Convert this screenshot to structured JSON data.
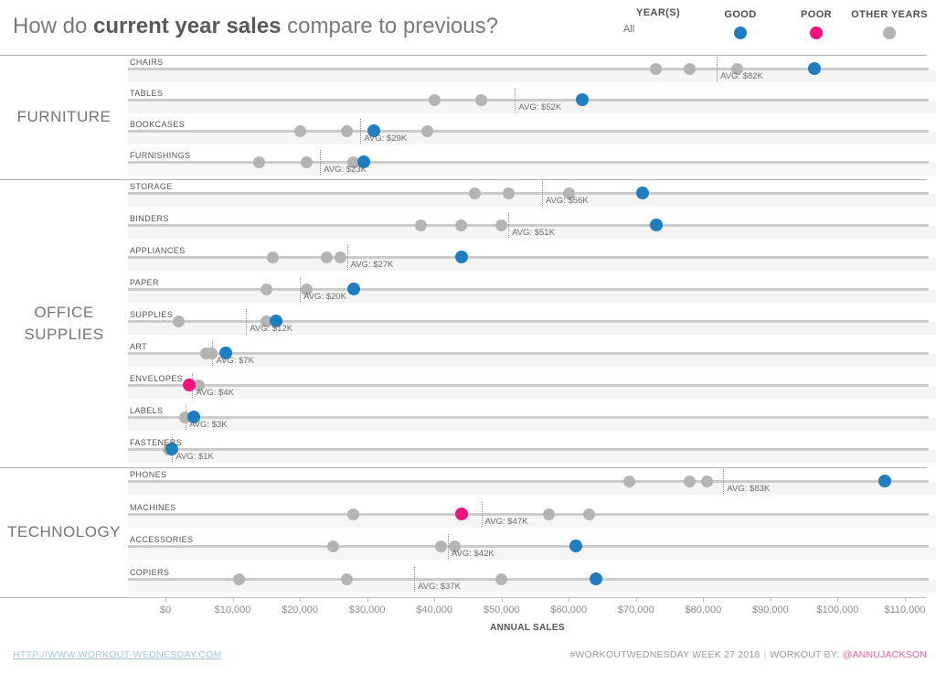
{
  "title": {
    "prefix": "How do ",
    "highlight": "current year sales",
    "suffix": " compare to previous?"
  },
  "legend": {
    "year_filter_label": "YEAR(S)",
    "year_filter_value": "All",
    "items": [
      {
        "label": "GOOD",
        "color": "#1e7ec1"
      },
      {
        "label": "POOR",
        "color": "#f0137f"
      },
      {
        "label": "OTHER YEARS",
        "color": "#b4b4b4"
      }
    ]
  },
  "colors": {
    "good": "#1e7ec1",
    "poor": "#f0137f",
    "other": "#b4b4b4",
    "link": "#a3c9dc",
    "handle": "#ee5fa4"
  },
  "chart_data": {
    "type": "scatter",
    "title": "How do current year sales compare to previous?",
    "xlabel": "ANNUAL SALES",
    "xlim": [
      0,
      110000
    ],
    "x_ticks": [
      {
        "value": 0,
        "label": "$0"
      },
      {
        "value": 10000,
        "label": "$10,000"
      },
      {
        "value": 20000,
        "label": "$20,000"
      },
      {
        "value": 30000,
        "label": "$30,000"
      },
      {
        "value": 40000,
        "label": "$40,000"
      },
      {
        "value": 50000,
        "label": "$50,000"
      },
      {
        "value": 60000,
        "label": "$60,000"
      },
      {
        "value": 70000,
        "label": "$70,000"
      },
      {
        "value": 80000,
        "label": "$80,000"
      },
      {
        "value": 90000,
        "label": "$90,000"
      },
      {
        "value": 100000,
        "label": "$100,000"
      },
      {
        "value": 110000,
        "label": "$110,000"
      }
    ],
    "sections": [
      {
        "name": "FURNITURE",
        "rows": [
          {
            "label": "CHAIRS",
            "others": [
              73000,
              78000,
              85000
            ],
            "current": 96500,
            "current_status": "good",
            "avg": 82000,
            "avg_label": "AVG: $82K"
          },
          {
            "label": "TABLES",
            "others": [
              40000,
              47000
            ],
            "current": 62000,
            "current_status": "good",
            "avg": 52000,
            "avg_label": "AVG: $52K"
          },
          {
            "label": "BOOKCASES",
            "others": [
              20000,
              27000,
              39000
            ],
            "current": 31000,
            "current_status": "good",
            "avg": 29000,
            "avg_label": "AVG: $29K"
          },
          {
            "label": "FURNISHINGS",
            "others": [
              14000,
              21000,
              28000
            ],
            "current": 29500,
            "current_status": "good",
            "avg": 23000,
            "avg_label": "AVG: $23K"
          }
        ]
      },
      {
        "name": "OFFICE SUPPLIES",
        "rows": [
          {
            "label": "STORAGE",
            "others": [
              46000,
              51000,
              60000
            ],
            "current": 71000,
            "current_status": "good",
            "avg": 56000,
            "avg_label": "AVG: $56K"
          },
          {
            "label": "BINDERS",
            "others": [
              38000,
              44000,
              50000
            ],
            "current": 73000,
            "current_status": "good",
            "avg": 51000,
            "avg_label": "AVG: $51K"
          },
          {
            "label": "APPLIANCES",
            "others": [
              16000,
              24000,
              26000
            ],
            "current": 44000,
            "current_status": "good",
            "avg": 27000,
            "avg_label": "AVG: $27K"
          },
          {
            "label": "PAPER",
            "others": [
              15000,
              21000
            ],
            "current": 28000,
            "current_status": "good",
            "avg": 20000,
            "avg_label": "AVG: $20K"
          },
          {
            "label": "SUPPLIES",
            "others": [
              2000,
              15000
            ],
            "current": 16500,
            "current_status": "good",
            "avg": 12000,
            "avg_label": "AVG: $12K"
          },
          {
            "label": "ART",
            "others": [
              6000,
              6800
            ],
            "current": 9000,
            "current_status": "good",
            "avg": 7000,
            "avg_label": "AVG: $7K"
          },
          {
            "label": "ENVELOPES",
            "others": [
              4900
            ],
            "current": 3500,
            "current_status": "poor",
            "avg": 4000,
            "avg_label": "AVG: $4K"
          },
          {
            "label": "LABELS",
            "others": [
              2900
            ],
            "current": 4200,
            "current_status": "good",
            "avg": 3000,
            "avg_label": "AVG: $3K"
          },
          {
            "label": "FASTENERS",
            "others": [
              500
            ],
            "current": 900,
            "current_status": "good",
            "avg": 1000,
            "avg_label": "AVG: $1K"
          }
        ]
      },
      {
        "name": "TECHNOLOGY",
        "rows": [
          {
            "label": "PHONES",
            "others": [
              69000,
              78000,
              80500
            ],
            "current": 107000,
            "current_status": "good",
            "avg": 83000,
            "avg_label": "AVG: $83K"
          },
          {
            "label": "MACHINES",
            "others": [
              28000,
              57000,
              63000
            ],
            "current": 44000,
            "current_status": "poor",
            "avg": 47000,
            "avg_label": "AVG: $47K"
          },
          {
            "label": "ACCESSORIES",
            "others": [
              25000,
              41000,
              43000
            ],
            "current": 61000,
            "current_status": "good",
            "avg": 42000,
            "avg_label": "AVG: $42K"
          },
          {
            "label": "COPIERS",
            "others": [
              11000,
              27000,
              50000
            ],
            "current": 64000,
            "current_status": "good",
            "avg": 37000,
            "avg_label": "AVG: $37K"
          }
        ]
      }
    ]
  },
  "footer": {
    "left_link": "HTTP://WWW.WORKOUT-WEDNESDAY.COM",
    "right_tag": "#WORKOUTWEDNESDAY WEEK 27 2018",
    "separator": "|",
    "right_credit": "WORKOUT BY:",
    "right_handle": "@ANNUJACKSON"
  }
}
